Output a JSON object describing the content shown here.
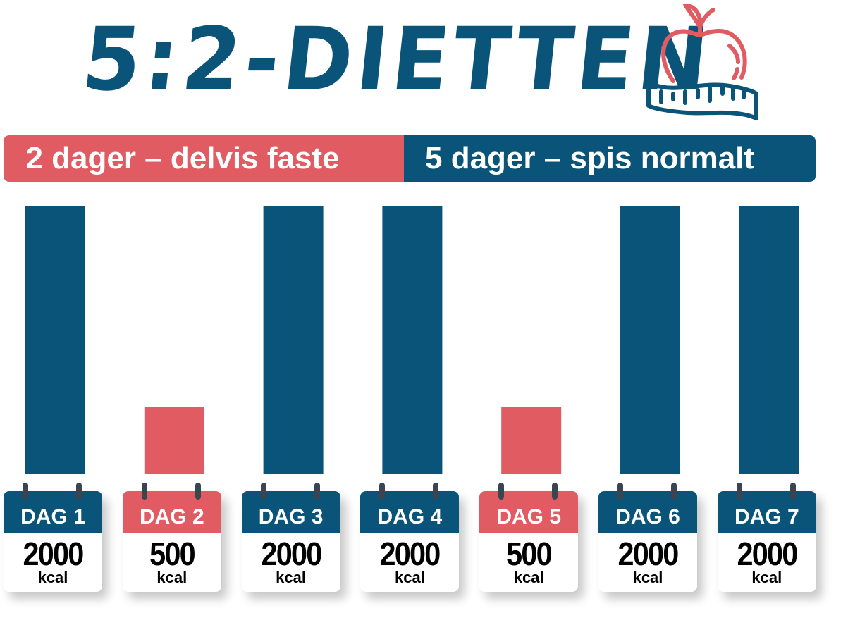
{
  "title": "5:2-DIETTEN",
  "icon": "apple-measuring-tape-icon",
  "banner": {
    "left_label": "2 dager – delvis faste",
    "right_label": "5 dager – spis normalt"
  },
  "colors": {
    "normal": "#0b5479",
    "fasting": "#e15b63"
  },
  "chart_data": {
    "type": "bar",
    "categories": [
      "DAG 1",
      "DAG 2",
      "DAG 3",
      "DAG 4",
      "DAG 5",
      "DAG 6",
      "DAG 7"
    ],
    "values": [
      2000,
      500,
      2000,
      2000,
      500,
      2000,
      2000
    ],
    "value_labels": [
      "2000",
      "500",
      "2000",
      "2000",
      "500",
      "2000",
      "2000"
    ],
    "unit": "kcal",
    "fasting": [
      false,
      true,
      false,
      false,
      true,
      false,
      false
    ],
    "ylim": [
      0,
      2000
    ],
    "grid": false
  }
}
